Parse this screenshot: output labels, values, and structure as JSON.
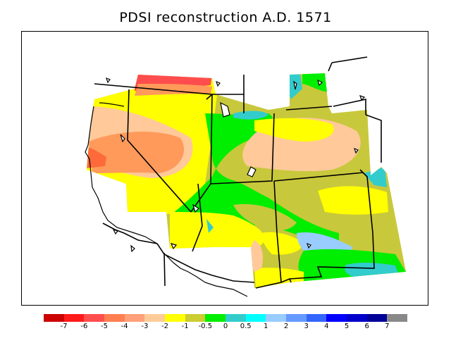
{
  "title": "PDSI reconstruction A.D. 1571",
  "colorbar": {
    "colors": [
      "#cc0000",
      "#ff1a1a",
      "#ff4d4d",
      "#ff7f50",
      "#ffa07a",
      "#ffcc99",
      "#ffff00",
      "#cccc33",
      "#00ee00",
      "#33cccc",
      "#00ffff",
      "#99ccff",
      "#6699ff",
      "#3366ff",
      "#0000ff",
      "#0000cc",
      "#000099",
      "#888888"
    ],
    "labels": [
      "-7",
      "-6",
      "-5",
      "-4",
      "-3",
      "-2",
      "-1",
      "-0.5",
      "0",
      "0.5",
      "1",
      "2",
      "3",
      "4",
      "5",
      "6",
      "7"
    ]
  },
  "regions_legend_colors": {
    "orange_red": "#ff6a3a",
    "orange": "#ff9a5a",
    "peach": "#ffc99a",
    "yellow": "#ffff00",
    "olive": "#c8c83c",
    "green": "#00ee00",
    "cyan": "#33cccc",
    "light_blue": "#99ccff"
  }
}
